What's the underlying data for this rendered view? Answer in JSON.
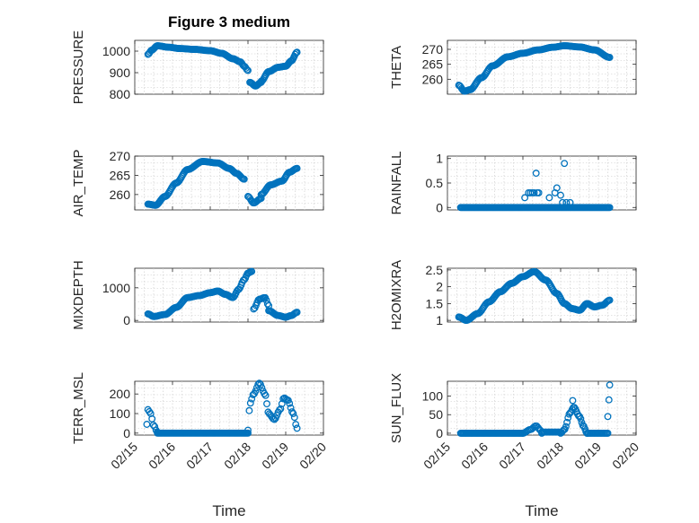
{
  "figure": {
    "title": "Figure 3 medium"
  },
  "colors": {
    "marker": "#0072bd"
  },
  "chart_data": [
    {
      "type": "scatter",
      "id": "pressure",
      "ylabel": "PRESSURE",
      "ylim": [
        800,
        1050
      ],
      "yticks": [
        800,
        900,
        1000
      ],
      "ytick_labels": [
        "800",
        "900",
        "1000"
      ],
      "xticks": [
        0,
        1,
        2,
        3,
        4,
        5
      ],
      "xtick_labels": [
        "02/15",
        "02/16",
        "02/17",
        "02/18",
        "02/19",
        "02/20"
      ],
      "xlim": [
        0,
        5
      ],
      "x_format": "days after 02/15",
      "segments": [
        {
          "kind": "curve",
          "x0": 0.35,
          "x1": 2.6,
          "n": 90,
          "pts": [
            [
              0.35,
              985
            ],
            [
              0.45,
              1005
            ],
            [
              0.6,
              1025
            ],
            [
              0.9,
              1018
            ],
            [
              1.2,
              1012
            ],
            [
              1.6,
              1008
            ],
            [
              2.0,
              1002
            ],
            [
              2.3,
              990
            ],
            [
              2.6,
              965
            ]
          ]
        },
        {
          "kind": "curve",
          "x0": 2.6,
          "x1": 3.0,
          "n": 16,
          "pts": [
            [
              2.6,
              965
            ],
            [
              2.8,
              950
            ],
            [
              2.9,
              930
            ],
            [
              3.0,
              910
            ]
          ]
        },
        {
          "kind": "curve",
          "x0": 3.05,
          "x1": 3.35,
          "n": 14,
          "pts": [
            [
              3.05,
              855
            ],
            [
              3.2,
              838
            ],
            [
              3.35,
              855
            ]
          ]
        },
        {
          "kind": "curve",
          "x0": 3.35,
          "x1": 4.3,
          "n": 40,
          "pts": [
            [
              3.35,
              860
            ],
            [
              3.55,
              905
            ],
            [
              3.8,
              925
            ],
            [
              4.0,
              930
            ],
            [
              4.15,
              955
            ],
            [
              4.3,
              995
            ]
          ]
        }
      ]
    },
    {
      "type": "scatter",
      "id": "theta",
      "ylabel": "THETA",
      "ylim": [
        255,
        273
      ],
      "yticks": [
        260,
        265,
        270
      ],
      "ytick_labels": [
        "260",
        "265",
        "270"
      ],
      "xticks": [
        0,
        1,
        2,
        3,
        4,
        5
      ],
      "xtick_labels": [
        "02/15",
        "02/16",
        "02/17",
        "02/18",
        "02/19",
        "02/20"
      ],
      "xlim": [
        0,
        5
      ],
      "x_format": "days after 02/15",
      "segments": [
        {
          "kind": "curve",
          "x0": 0.3,
          "x1": 4.3,
          "n": 150,
          "pts": [
            [
              0.3,
              258
            ],
            [
              0.45,
              256
            ],
            [
              0.6,
              256.5
            ],
            [
              0.9,
              260.5
            ],
            [
              1.2,
              264.5
            ],
            [
              1.6,
              267.5
            ],
            [
              2.0,
              268.7
            ],
            [
              2.4,
              269.8
            ],
            [
              2.8,
              270.7
            ],
            [
              3.1,
              271.2
            ],
            [
              3.5,
              270.8
            ],
            [
              3.9,
              269.8
            ],
            [
              4.3,
              267.3
            ]
          ]
        }
      ]
    },
    {
      "type": "scatter",
      "id": "air_temp",
      "ylabel": "AIR_TEMP",
      "ylim": [
        256,
        270
      ],
      "yticks": [
        260,
        265,
        270
      ],
      "ytick_labels": [
        "260",
        "265",
        "270"
      ],
      "xticks": [
        0,
        1,
        2,
        3,
        4,
        5
      ],
      "xtick_labels": [
        "02/15",
        "02/16",
        "02/17",
        "02/18",
        "02/19",
        "02/20"
      ],
      "xlim": [
        0,
        5
      ],
      "x_format": "days after 02/15",
      "segments": [
        {
          "kind": "curve",
          "x0": 0.35,
          "x1": 2.9,
          "n": 100,
          "pts": [
            [
              0.35,
              257.5
            ],
            [
              0.55,
              257.2
            ],
            [
              0.8,
              259.5
            ],
            [
              1.1,
              263
            ],
            [
              1.4,
              266.5
            ],
            [
              1.8,
              268.6
            ],
            [
              2.2,
              268.2
            ],
            [
              2.5,
              266.8
            ],
            [
              2.7,
              265.5
            ],
            [
              2.9,
              264
            ]
          ]
        },
        {
          "kind": "curve",
          "x0": 3.0,
          "x1": 3.35,
          "n": 14,
          "pts": [
            [
              3.0,
              259.5
            ],
            [
              3.15,
              257.8
            ],
            [
              3.35,
              259
            ]
          ]
        },
        {
          "kind": "curve",
          "x0": 3.35,
          "x1": 4.3,
          "n": 38,
          "pts": [
            [
              3.35,
              260
            ],
            [
              3.6,
              262.5
            ],
            [
              3.9,
              263.5
            ],
            [
              4.1,
              265.8
            ],
            [
              4.3,
              266.8
            ]
          ]
        }
      ]
    },
    {
      "type": "scatter",
      "id": "rainfall",
      "ylabel": "RAINFALL",
      "ylim": [
        -0.05,
        1.05
      ],
      "yticks": [
        0,
        0.5,
        1
      ],
      "ytick_labels": [
        "0",
        "0.5",
        "1"
      ],
      "xticks": [
        0,
        1,
        2,
        3,
        4,
        5
      ],
      "xtick_labels": [
        "02/15",
        "02/16",
        "02/17",
        "02/18",
        "02/19",
        "02/20"
      ],
      "xlim": [
        0,
        5
      ],
      "x_format": "days after 02/15",
      "segments": [
        {
          "kind": "flat",
          "x0": 0.35,
          "x1": 4.3,
          "n": 150,
          "y": 0
        },
        {
          "kind": "points",
          "pts": [
            [
              2.05,
              0.2
            ],
            [
              2.15,
              0.3
            ],
            [
              2.2,
              0.3
            ],
            [
              2.25,
              0.3
            ],
            [
              2.3,
              0.3
            ],
            [
              2.35,
              0.7
            ],
            [
              2.38,
              0.3
            ],
            [
              2.42,
              0.3
            ],
            [
              2.7,
              0.2
            ],
            [
              2.85,
              0.3
            ],
            [
              2.9,
              0.4
            ],
            [
              3.0,
              0.25
            ],
            [
              3.05,
              0.1
            ],
            [
              3.1,
              0.9
            ],
            [
              3.15,
              0.1
            ],
            [
              3.25,
              0.1
            ]
          ]
        }
      ]
    },
    {
      "type": "scatter",
      "id": "mixdepth",
      "ylabel": "MIXDEPTH",
      "ylim": [
        -50,
        1600
      ],
      "yticks": [
        0,
        1000
      ],
      "ytick_labels": [
        "0",
        "1000"
      ],
      "xticks": [
        0,
        1,
        2,
        3,
        4,
        5
      ],
      "xtick_labels": [
        "02/15",
        "02/16",
        "02/17",
        "02/18",
        "02/19",
        "02/20"
      ],
      "xlim": [
        0,
        5
      ],
      "x_format": "days after 02/15",
      "segments": [
        {
          "kind": "curve",
          "x0": 0.35,
          "x1": 2.4,
          "n": 80,
          "pts": [
            [
              0.35,
              200
            ],
            [
              0.5,
              120
            ],
            [
              0.8,
              180
            ],
            [
              1.1,
              400
            ],
            [
              1.4,
              700
            ],
            [
              1.7,
              760
            ],
            [
              2.0,
              850
            ],
            [
              2.2,
              900
            ],
            [
              2.4,
              800
            ]
          ]
        },
        {
          "kind": "curve",
          "x0": 2.4,
          "x1": 3.1,
          "n": 26,
          "pts": [
            [
              2.4,
              800
            ],
            [
              2.6,
              700
            ],
            [
              2.75,
              950
            ],
            [
              2.9,
              1250
            ],
            [
              3.0,
              1450
            ],
            [
              3.1,
              1500
            ]
          ]
        },
        {
          "kind": "curve",
          "x0": 3.15,
          "x1": 3.55,
          "n": 14,
          "pts": [
            [
              3.15,
              350
            ],
            [
              3.3,
              650
            ],
            [
              3.45,
              700
            ],
            [
              3.55,
              450
            ]
          ]
        },
        {
          "kind": "curve",
          "x0": 3.55,
          "x1": 4.3,
          "n": 28,
          "pts": [
            [
              3.55,
              300
            ],
            [
              3.8,
              150
            ],
            [
              4.0,
              100
            ],
            [
              4.15,
              150
            ],
            [
              4.3,
              250
            ]
          ]
        }
      ]
    },
    {
      "type": "scatter",
      "id": "h2omixra",
      "ylabel": "H2OMIXRA",
      "ylim": [
        0.95,
        2.55
      ],
      "yticks": [
        1,
        1.5,
        2,
        2.5
      ],
      "ytick_labels": [
        "1",
        "1.5",
        "2",
        "2.5"
      ],
      "xticks": [
        0,
        1,
        2,
        3,
        4,
        5
      ],
      "xtick_labels": [
        "02/15",
        "02/16",
        "02/17",
        "02/18",
        "02/19",
        "02/20"
      ],
      "xlim": [
        0,
        5
      ],
      "x_format": "days after 02/15",
      "segments": [
        {
          "kind": "curve",
          "x0": 0.3,
          "x1": 4.3,
          "n": 150,
          "pts": [
            [
              0.3,
              1.1
            ],
            [
              0.5,
              1.0
            ],
            [
              0.8,
              1.2
            ],
            [
              1.1,
              1.55
            ],
            [
              1.4,
              1.85
            ],
            [
              1.7,
              2.1
            ],
            [
              2.0,
              2.3
            ],
            [
              2.3,
              2.45
            ],
            [
              2.6,
              2.2
            ],
            [
              2.9,
              1.8
            ],
            [
              3.1,
              1.5
            ],
            [
              3.3,
              1.35
            ],
            [
              3.5,
              1.3
            ],
            [
              3.7,
              1.5
            ],
            [
              3.9,
              1.4
            ],
            [
              4.1,
              1.45
            ],
            [
              4.3,
              1.6
            ]
          ]
        }
      ]
    },
    {
      "type": "scatter",
      "id": "terr_msl",
      "ylabel": "TERR_MSL",
      "ylim": [
        -10,
        265
      ],
      "yticks": [
        0,
        100,
        200
      ],
      "ytick_labels": [
        "0",
        "100",
        "200"
      ],
      "xticks": [
        0,
        1,
        2,
        3,
        4,
        5
      ],
      "xtick_labels": [
        "02/15",
        "02/16",
        "02/17",
        "02/18",
        "02/19",
        "02/20"
      ],
      "xlim": [
        0,
        5
      ],
      "x_format": "days after 02/15",
      "segments": [
        {
          "kind": "curve",
          "x0": 0.35,
          "x1": 0.6,
          "n": 8,
          "pts": [
            [
              0.35,
              120
            ],
            [
              0.42,
              100
            ],
            [
              0.5,
              40
            ],
            [
              0.6,
              5
            ]
          ]
        },
        {
          "kind": "flat",
          "x0": 0.6,
          "x1": 3.0,
          "n": 90,
          "y": 0
        },
        {
          "kind": "points",
          "pts": [
            [
              0.32,
              45
            ]
          ]
        },
        {
          "kind": "curve",
          "x0": 3.0,
          "x1": 4.3,
          "n": 40,
          "pts": [
            [
              3.0,
              15
            ],
            [
              3.05,
              150
            ],
            [
              3.15,
              200
            ],
            [
              3.3,
              255
            ],
            [
              3.45,
              200
            ],
            [
              3.55,
              100
            ],
            [
              3.7,
              70
            ],
            [
              3.85,
              120
            ],
            [
              3.95,
              180
            ],
            [
              4.05,
              170
            ],
            [
              4.2,
              100
            ],
            [
              4.3,
              25
            ]
          ]
        }
      ]
    },
    {
      "type": "scatter",
      "id": "sun_flux",
      "ylabel": "SUN_FLUX",
      "ylim": [
        -5,
        140
      ],
      "yticks": [
        0,
        50,
        100
      ],
      "ytick_labels": [
        "0",
        "50",
        "100"
      ],
      "xticks": [
        0,
        1,
        2,
        3,
        4,
        5
      ],
      "xtick_labels": [
        "02/15",
        "02/16",
        "02/17",
        "02/18",
        "02/19",
        "02/20"
      ],
      "xlim": [
        0,
        5
      ],
      "x_format": "days after 02/15",
      "segments": [
        {
          "kind": "flat",
          "x0": 0.35,
          "x1": 2.0,
          "n": 60,
          "y": 0
        },
        {
          "kind": "curve",
          "x0": 2.0,
          "x1": 2.5,
          "n": 16,
          "pts": [
            [
              2.0,
              0
            ],
            [
              2.2,
              10
            ],
            [
              2.35,
              20
            ],
            [
              2.45,
              10
            ],
            [
              2.5,
              0
            ]
          ]
        },
        {
          "kind": "flat",
          "x0": 2.5,
          "x1": 3.0,
          "n": 16,
          "y": 3
        },
        {
          "kind": "curve",
          "x0": 3.0,
          "x1": 3.7,
          "n": 26,
          "pts": [
            [
              3.0,
              0
            ],
            [
              3.1,
              10
            ],
            [
              3.25,
              55
            ],
            [
              3.35,
              70
            ],
            [
              3.5,
              45
            ],
            [
              3.6,
              20
            ],
            [
              3.7,
              0
            ]
          ]
        },
        {
          "kind": "flat",
          "x0": 3.7,
          "x1": 4.25,
          "n": 18,
          "y": 0
        },
        {
          "kind": "points",
          "pts": [
            [
              4.25,
              45
            ],
            [
              4.28,
              90
            ],
            [
              4.3,
              130
            ],
            [
              3.32,
              88
            ]
          ]
        }
      ]
    }
  ]
}
